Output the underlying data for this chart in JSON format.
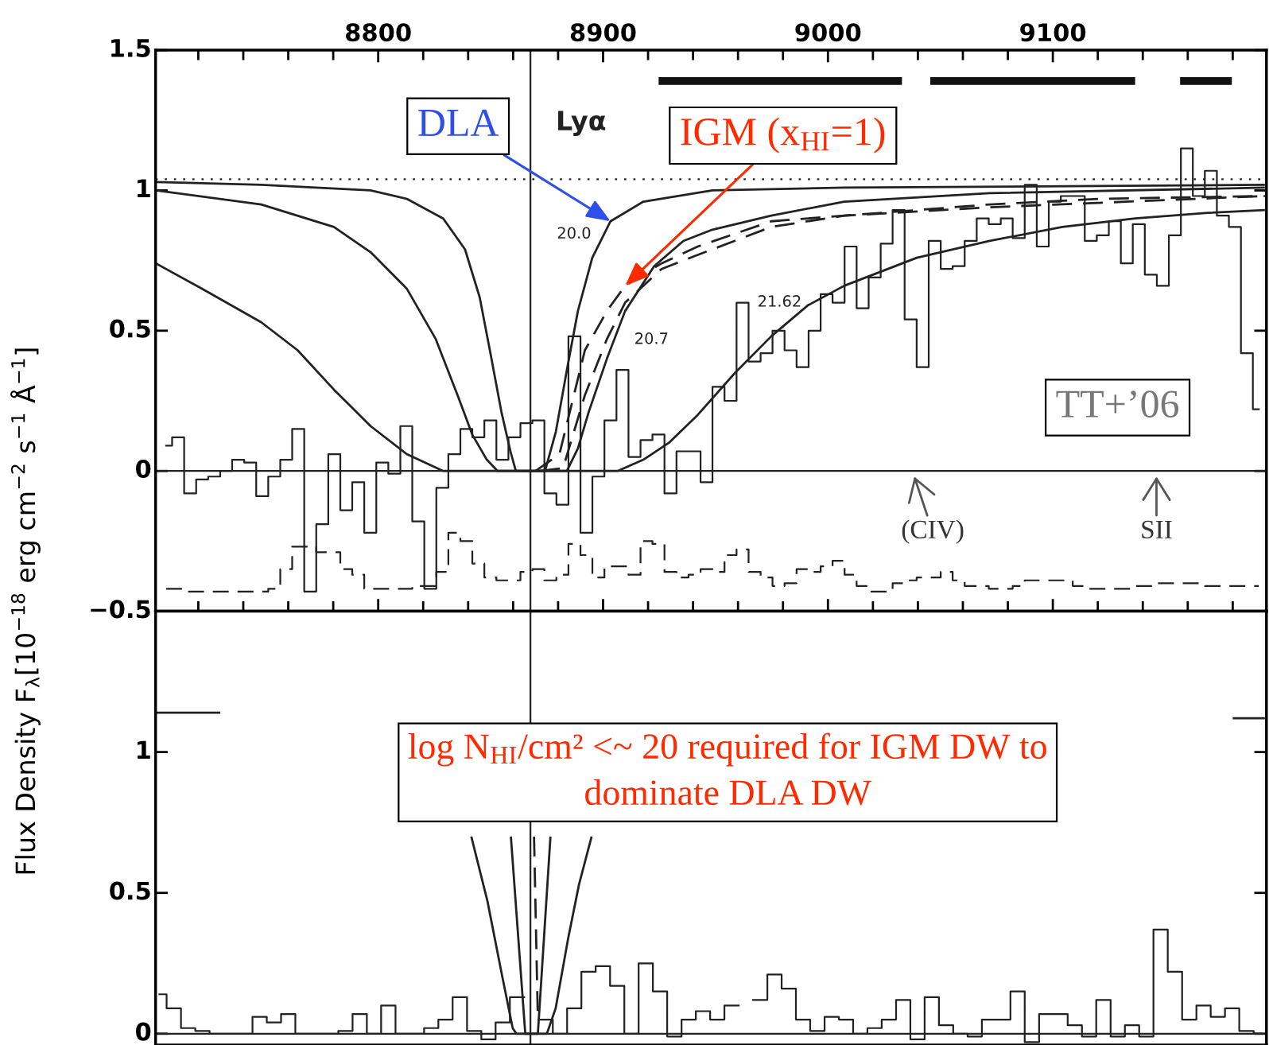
{
  "chart_data": [
    {
      "type": "step",
      "ylabel": "Flux Density F$_{λ}$[10$^{−18}$ erg cm$^{−2}$ s$^{−1}$ Å$^{−1}$]",
      "xlim": [
        8701,
        9195
      ],
      "xticks": [
        8800,
        8900,
        9000,
        9100
      ],
      "ylim": [
        -0.5,
        1.5
      ],
      "yticks": [
        {
          "value": -0.5,
          "label": "−0.5"
        },
        0,
        0.5,
        1,
        1.5
      ],
      "series": [
        {
          "color": "#222222",
          "line_style": "solid",
          "x": [
            8705.7,
            8711.0,
            8716.4,
            8721.7,
            8727.1,
            8732.4,
            8737.7,
            8743.1,
            8748.4,
            8753.8,
            8759.1,
            8764.4,
            8769.8,
            8775.1,
            8780.5,
            8785.8,
            8791.1,
            8796.5,
            8801.8,
            8807.2,
            8812.5,
            8817.8,
            8823.2,
            8828.5,
            8833.9,
            8839.2,
            8844.5,
            8849.9,
            8855.2,
            8860.6,
            8865.9,
            8871.2,
            8876.6,
            8881.9,
            8887.3,
            8892.6,
            8897.9,
            8903.3,
            8908.6,
            8914.0,
            8919.3,
            8924.6,
            8930.0,
            8935.3,
            8940.7,
            8946.0,
            8951.3,
            8956.7,
            8962.0,
            8967.4,
            8972.7,
            8978.0,
            8983.4,
            8988.7,
            8994.1,
            8999.4,
            9004.7,
            9010.1,
            9015.4,
            9020.8,
            9026.1,
            9031.4,
            9036.8,
            9042.1,
            9047.5,
            9052.8,
            9058.1,
            9063.5,
            9068.8,
            9074.2,
            9079.5,
            9084.8,
            9090.2,
            9095.5,
            9100.9,
            9106.2,
            9111.5,
            9116.9,
            9122.2,
            9127.6,
            9132.9,
            9138.2,
            9143.6,
            9148.9,
            9154.3,
            9159.6,
            9164.9,
            9170.3,
            9175.6,
            9181.0,
            9186.3,
            9191.6
          ],
          "values": [
            0.09,
            0.12,
            -0.08,
            -0.03,
            -0.02,
            0.0,
            0.04,
            0.03,
            -0.09,
            -0.02,
            0.04,
            0.15,
            -0.43,
            -0.19,
            0.06,
            -0.14,
            -0.04,
            -0.22,
            0.03,
            -0.01,
            0.16,
            -0.18,
            -0.42,
            -0.06,
            0.06,
            0.15,
            0.12,
            0.18,
            0.04,
            0.12,
            0.17,
            0.18,
            -0.08,
            -0.12,
            0.48,
            -0.22,
            -0.02,
            0.18,
            0.36,
            0.05,
            0.11,
            0.13,
            -0.08,
            0.07,
            0.07,
            -0.04,
            0.3,
            0.25,
            0.6,
            0.39,
            0.42,
            0.5,
            0.43,
            0.37,
            0.5,
            0.63,
            0.6,
            0.8,
            0.58,
            0.69,
            0.81,
            0.93,
            0.54,
            0.37,
            0.82,
            0.72,
            0.73,
            0.82,
            0.9,
            0.88,
            0.9,
            0.83,
            1.02,
            0.8,
            0.96,
            0.98,
            0.98,
            0.82,
            0.84,
            0.89,
            0.74,
            0.88,
            0.7,
            0.66,
            0.84,
            1.15,
            0.98,
            1.07,
            0.91,
            0.87,
            0.42,
            0.22
          ]
        },
        {
          "color": "#222222",
          "line_style": "dashed",
          "x": [
            8705.7,
            8711.0,
            8716.4,
            8721.7,
            8727.1,
            8732.4,
            8737.7,
            8743.1,
            8748.4,
            8753.8,
            8759.1,
            8764.4,
            8769.8,
            8775.1,
            8780.5,
            8785.8,
            8791.1,
            8796.5,
            8801.8,
            8807.2,
            8812.5,
            8817.8,
            8823.2,
            8828.5,
            8833.9,
            8839.2,
            8844.5,
            8849.9,
            8855.2,
            8860.6,
            8865.9,
            8871.2,
            8876.6,
            8881.9,
            8887.3,
            8892.6,
            8897.9,
            8903.3,
            8908.6,
            8914.0,
            8919.3,
            8924.6,
            8930.0,
            8935.3,
            8940.7,
            8946.0,
            8951.3,
            8956.7,
            8962.0,
            8967.4,
            8972.7,
            8978.0,
            8983.4,
            8988.7,
            8994.1,
            8999.4,
            9004.7,
            9010.1,
            9015.4,
            9020.8,
            9026.1,
            9031.4,
            9036.8,
            9042.1,
            9047.5,
            9052.8,
            9058.1,
            9063.5,
            9068.8,
            9074.2,
            9079.5,
            9084.8,
            9090.2,
            9095.5,
            9100.9,
            9106.2,
            9111.5,
            9116.9,
            9122.2,
            9127.6,
            9132.9,
            9138.2,
            9143.6,
            9148.9,
            9154.3,
            9159.6,
            9164.9,
            9170.3,
            9175.6,
            9181.0,
            9186.3,
            9191.6
          ],
          "values": [
            -0.42,
            -0.42,
            -0.43,
            -0.43,
            -0.43,
            -0.43,
            -0.43,
            -0.43,
            -0.43,
            -0.42,
            -0.35,
            -0.27,
            -0.27,
            -0.29,
            -0.29,
            -0.35,
            -0.37,
            -0.42,
            -0.42,
            -0.42,
            -0.42,
            -0.41,
            -0.41,
            -0.36,
            -0.22,
            -0.25,
            -0.33,
            -0.38,
            -0.39,
            -0.39,
            -0.36,
            -0.35,
            -0.39,
            -0.37,
            -0.26,
            -0.3,
            -0.38,
            -0.34,
            -0.34,
            -0.37,
            -0.25,
            -0.26,
            -0.36,
            -0.38,
            -0.37,
            -0.35,
            -0.36,
            -0.3,
            -0.28,
            -0.36,
            -0.38,
            -0.41,
            -0.4,
            -0.35,
            -0.36,
            -0.34,
            -0.32,
            -0.37,
            -0.41,
            -0.43,
            -0.43,
            -0.4,
            -0.39,
            -0.38,
            -0.38,
            -0.36,
            -0.39,
            -0.41,
            -0.41,
            -0.42,
            -0.42,
            -0.41,
            -0.39,
            -0.39,
            -0.39,
            -0.39,
            -0.41,
            -0.42,
            -0.42,
            -0.42,
            -0.42,
            -0.41,
            -0.41,
            -0.4,
            -0.4,
            -0.4,
            -0.4,
            -0.41,
            -0.41,
            -0.41,
            -0.41,
            -0.41
          ]
        },
        {
          "type": "line",
          "color": "#222222",
          "line_style": "solid",
          "x": [
            8701.1,
            8748.0,
            8796.6,
            8812.7,
            8828.9,
            8838.6,
            8845.1,
            8849.9,
            8854.8,
            8858.8,
            8861.2,
            8874.2,
            8879.0,
            8883.9,
            8888.8,
            8895.2,
            8903.3,
            8917.9,
            8948.6,
            9007.2,
            9194.3
          ],
          "values": [
            1.03,
            1.02,
            1.0,
            0.97,
            0.9,
            0.79,
            0.62,
            0.42,
            0.21,
            0.07,
            0.0,
            0.0,
            0.14,
            0.36,
            0.57,
            0.76,
            0.89,
            0.96,
            1.0,
            1.01,
            1.02
          ]
        },
        {
          "type": "line",
          "color": "#222222",
          "line_style": "solid",
          "x": [
            8701.1,
            8748.0,
            8780.3,
            8796.6,
            8812.7,
            8825.6,
            8835.3,
            8841.8,
            8848.3,
            8853.1,
            8883.9,
            8888.8,
            8893.6,
            8901.7,
            8909.8,
            8922.7,
            8935.7,
            8948.6,
            8974.8,
            9007.2,
            9071.9,
            9194.3
          ],
          "values": [
            1.0,
            0.95,
            0.87,
            0.78,
            0.65,
            0.47,
            0.27,
            0.13,
            0.04,
            0.0,
            0.0,
            0.08,
            0.21,
            0.4,
            0.57,
            0.73,
            0.82,
            0.86,
            0.91,
            0.96,
            0.99,
            1.01
          ]
        },
        {
          "type": "line",
          "color": "#222222",
          "line_style": "solid",
          "x": [
            8701.1,
            8723.8,
            8748.0,
            8764.2,
            8780.3,
            8796.6,
            8812.7,
            8828.9,
            8906.5,
            8917.9,
            8929.2,
            8942.1,
            8958.7,
            8974.8,
            8991.0,
            9007.2,
            9039.5,
            9071.9,
            9104.2,
            9136.6,
            9168.9,
            9194.3
          ],
          "values": [
            0.74,
            0.64,
            0.53,
            0.43,
            0.29,
            0.16,
            0.06,
            0.0,
            0.0,
            0.04,
            0.1,
            0.2,
            0.35,
            0.48,
            0.59,
            0.66,
            0.76,
            0.82,
            0.87,
            0.9,
            0.92,
            0.93
          ]
        },
        {
          "type": "line",
          "color": "#222222",
          "line_style": "dashed",
          "x": [
            8870.0,
            8880.6,
            8891.9,
            8901.7,
            8909.8,
            8926.0,
            8942.1,
            8974.8,
            9007.2,
            9071.9,
            9120.4,
            9194.3
          ],
          "values": [
            0.0,
            0.06,
            0.43,
            0.57,
            0.66,
            0.74,
            0.8,
            0.89,
            0.91,
            0.95,
            0.97,
            0.98
          ]
        },
        {
          "type": "line",
          "color": "#222222",
          "line_style": "dashed",
          "x": [
            8872.0,
            8882.2,
            8891.9,
            8901.7,
            8909.8,
            8926.0,
            8942.1,
            8974.8,
            9007.2,
            9071.9,
            9194.3
          ],
          "values": [
            0.0,
            0.01,
            0.27,
            0.47,
            0.6,
            0.72,
            0.77,
            0.87,
            0.91,
            0.94,
            0.98
          ]
        },
        {
          "type": "line",
          "color": "#111111",
          "line_style": "solid",
          "x": [
            8924.7,
            9032.9,
            9038.0,
            9045.5,
            9136.6,
            9146.0,
            9156.6,
            9179.6
          ],
          "values": [
            1.39,
            1.39,
            null,
            1.39,
            1.39,
            null,
            1.39,
            1.39
          ]
        }
      ],
      "ref_lines": [
        {
          "axis": "y",
          "value": 1.04,
          "line_style": "dotted",
          "color": "#222222"
        },
        {
          "axis": "y",
          "value": 0,
          "line_style": "solid",
          "color": "#222222"
        },
        {
          "axis": "x",
          "value": 8867.7,
          "line_style": "solid",
          "color": "#222222"
        }
      ],
      "annotations": [
        {
          "text": "DLA",
          "x": 8903.3,
          "y": 0.89
        },
        {
          "text": "IGM (x$_{HI}$=1)",
          "x": 8909.8,
          "y": 0.66
        },
        "Lyα",
        "20.0",
        "20.7",
        "21.62",
        "TT+’06",
        "(CIV)",
        "SII"
      ]
    },
    {
      "type": "step",
      "xlim": [
        8701,
        9195
      ],
      "ylim": [
        -0.04,
        1.5
      ],
      "yticks": [
        0,
        0.5,
        1
      ],
      "tick_labels": "y",
      "series": [
        {
          "color": "#222222",
          "line_style": "solid",
          "x": [
            8702.7,
            8709.1,
            8715.5,
            8721.8,
            8728.2,
            8734.5,
            8740.9,
            8747.3,
            8753.6,
            8760.0,
            8766.3,
            8772.7,
            8779.1,
            8785.4,
            8791.8,
            8798.1,
            8804.5,
            8810.9,
            8817.2,
            8823.6,
            8829.9,
            8836.3,
            8842.7,
            8849.0,
            8855.4,
            8861.7,
            8868.1,
            8874.5,
            8880.8,
            8887.2,
            8893.5,
            8899.9,
            8906.3,
            8912.6,
            8919.0,
            8925.3,
            8931.7,
            8938.1,
            8944.4,
            8950.8,
            8957.1,
            8963.5,
            8969.9,
            8976.2,
            8982.6,
            8988.9,
            8995.3,
            9001.7,
            9008.0,
            9014.4,
            9020.7,
            9027.1,
            9033.5,
            9039.8,
            9046.2,
            9052.5,
            9058.9,
            9065.3,
            9071.6,
            9078.0,
            9084.3,
            9090.7,
            9097.1,
            9103.4,
            9109.8,
            9116.1,
            9122.5,
            9128.9,
            9135.2,
            9141.6,
            9147.9,
            9154.3,
            9160.7,
            9167.0,
            9173.4,
            9179.7,
            9186.1,
            9192.5
          ],
          "values": [
            0.14,
            0.09,
            0.02,
            0.01,
            0,
            0,
            0,
            0.06,
            0.04,
            0.07,
            0,
            0,
            0,
            0.01,
            0.07,
            0,
            0.1,
            0,
            0,
            0.02,
            0.05,
            0.13,
            0.01,
            -0.02,
            0.04,
            0.13,
            null,
            0.05,
            0,
            0.09,
            0.22,
            0.24,
            0.17,
            0,
            0.25,
            0.15,
            -0.01,
            0.05,
            0.08,
            0.05,
            0.1,
            null,
            0.12,
            0.21,
            0.16,
            0.05,
            0.01,
            0.06,
            0.05,
            0,
            0.02,
            0.05,
            0.12,
            -0.02,
            0.13,
            0.03,
            0,
            -0.01,
            0.05,
            0.05,
            0.15,
            -0.03,
            0.07,
            0.07,
            0.03,
            -0.01,
            0.12,
            -0.01,
            0.03,
            -0.01,
            0.37,
            0.22,
            0.05,
            0.1,
            0.06,
            0.09,
            0.01,
            0
          ]
        },
        {
          "type": "line",
          "color": "#222222",
          "line_style": "solid",
          "x": [
            8701.1,
            8729.8,
            8740.0,
            8841.4,
            8848.6,
            8855.0,
            8859.8,
            8861.4,
            8875.0,
            8878.9,
            8884.5,
            8889.3,
            8894.9,
            8900.0,
            9180.0,
            9194.3
          ],
          "values": [
            1.14,
            1.14,
            null,
            0.7,
            0.47,
            0.21,
            0.02,
            0,
            0,
            0.09,
            0.34,
            0.53,
            0.7,
            null,
            1.12,
            1.12
          ]
        },
        {
          "type": "line",
          "color": "#222222",
          "line_style": "solid",
          "x": [
            8859.0,
            8865.4,
            8871.0,
            8876.6
          ],
          "values": [
            0.7,
            0,
            0,
            0.7
          ]
        },
        {
          "type": "line",
          "color": "#222222",
          "line_style": "dashed",
          "x": [
            8869.3,
            8871.0
          ],
          "values": [
            0.7,
            0.05
          ]
        }
      ],
      "ref_lines": [
        {
          "axis": "x",
          "value": 8867.7,
          "line_style": "solid",
          "color": "#222222"
        },
        {
          "axis": "y",
          "value": 0,
          "line_style": "solid",
          "color": "#222222"
        }
      ],
      "annotations": [
        "log N$_{HI}$/cm² <~ 20 required for IGM DW to\ndominate DLA DW"
      ]
    }
  ]
}
